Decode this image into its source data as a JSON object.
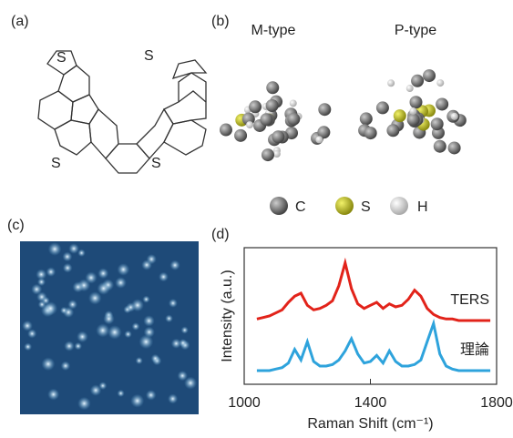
{
  "panel_labels": [
    "(a)",
    "(b)",
    "(c)",
    "(d)"
  ],
  "structure": {
    "atoms": [
      "S",
      "S",
      "S",
      "S"
    ]
  },
  "models": {
    "labels": [
      "M-type",
      "P-type"
    ],
    "legend": [
      "C",
      "S",
      "H"
    ]
  },
  "chart_data": {
    "type": "line",
    "x_label": "Raman Shift (cm⁻¹)",
    "y_label": "Intensity (a.u.)",
    "x": [
      1040,
      1060,
      1080,
      1100,
      1120,
      1140,
      1160,
      1180,
      1200,
      1220,
      1240,
      1260,
      1280,
      1300,
      1320,
      1340,
      1360,
      1380,
      1400,
      1420,
      1440,
      1460,
      1480,
      1500,
      1520,
      1540,
      1560,
      1580,
      1600,
      1620,
      1640,
      1660,
      1680,
      1700,
      1720,
      1740,
      1760,
      1780
    ],
    "series": [
      {
        "name": "TERS",
        "color": "#e2231a",
        "values": [
          4.3,
          4.4,
          4.5,
          4.7,
          4.9,
          5.4,
          5.8,
          6.0,
          5.2,
          4.9,
          5.0,
          5.2,
          5.5,
          6.5,
          8.0,
          6.3,
          5.3,
          5.0,
          5.2,
          5.4,
          5.0,
          5.3,
          5.1,
          5.2,
          5.6,
          6.2,
          5.8,
          5.0,
          4.6,
          4.4,
          4.3,
          4.3,
          4.2,
          4.2,
          4.2,
          4.2,
          4.2,
          4.2
        ]
      },
      {
        "name": "理論",
        "color": "#2ea3dc",
        "values": [
          0.9,
          0.9,
          0.9,
          1.0,
          1.1,
          1.4,
          2.3,
          1.6,
          2.8,
          1.5,
          1.2,
          1.2,
          1.3,
          1.6,
          2.2,
          3.0,
          2.0,
          1.4,
          1.5,
          1.9,
          1.4,
          2.2,
          1.5,
          1.2,
          1.2,
          1.3,
          1.6,
          2.8,
          4.0,
          2.0,
          1.2,
          1.0,
          0.9,
          0.9,
          0.9,
          0.9,
          0.9,
          0.9
        ]
      }
    ],
    "xlim": [
      1000,
      1800
    ],
    "xticks": [
      1000,
      1400,
      1800
    ],
    "ylim": [
      0,
      9
    ]
  }
}
